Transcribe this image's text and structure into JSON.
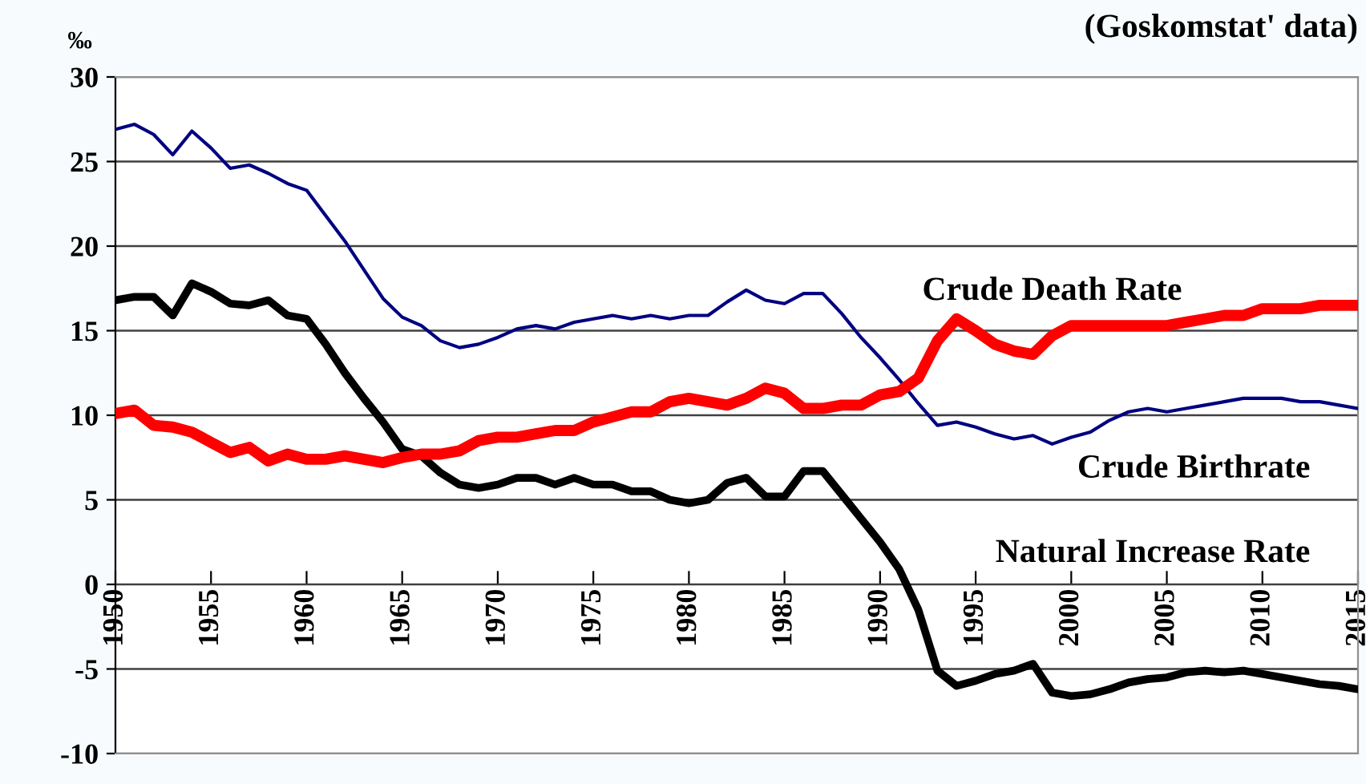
{
  "chart_data": {
    "type": "line",
    "title": "(Goskomstat' data)",
    "ylabel": "‰",
    "x": [
      1950,
      1951,
      1952,
      1953,
      1954,
      1955,
      1956,
      1957,
      1958,
      1959,
      1960,
      1961,
      1962,
      1963,
      1964,
      1965,
      1966,
      1967,
      1968,
      1969,
      1970,
      1971,
      1972,
      1973,
      1974,
      1975,
      1976,
      1977,
      1978,
      1979,
      1980,
      1981,
      1982,
      1983,
      1984,
      1985,
      1986,
      1987,
      1988,
      1989,
      1990,
      1991,
      1992,
      1993,
      1994,
      1995,
      1996,
      1997,
      1998,
      1999,
      2000,
      2001,
      2002,
      2003,
      2004,
      2005,
      2006,
      2007,
      2008,
      2009,
      2010,
      2011,
      2012,
      2013,
      2014,
      2015
    ],
    "series": [
      {
        "name": "Crude Death Rate",
        "color": "#ff0000",
        "values": [
          10.1,
          10.3,
          9.4,
          9.3,
          9.0,
          8.4,
          7.8,
          8.1,
          7.3,
          7.7,
          7.4,
          7.4,
          7.6,
          7.4,
          7.2,
          7.5,
          7.7,
          7.7,
          7.9,
          8.5,
          8.7,
          8.7,
          8.9,
          9.1,
          9.1,
          9.6,
          9.9,
          10.2,
          10.2,
          10.8,
          11.0,
          10.8,
          10.6,
          11.0,
          11.6,
          11.3,
          10.4,
          10.4,
          10.6,
          10.6,
          11.2,
          11.4,
          12.2,
          14.4,
          15.7,
          15.0,
          14.2,
          13.8,
          13.6,
          14.7,
          15.3,
          15.3,
          15.3,
          15.3,
          15.3,
          15.3,
          15.5,
          15.7,
          15.9,
          15.9,
          16.3,
          16.3,
          16.3,
          16.5,
          16.5,
          16.5
        ]
      },
      {
        "name": "Crude Birthrate",
        "color": "#000080",
        "values": [
          26.9,
          27.2,
          26.6,
          25.4,
          26.8,
          25.8,
          24.6,
          24.8,
          24.3,
          23.7,
          23.3,
          21.8,
          20.3,
          18.6,
          16.9,
          15.8,
          15.3,
          14.4,
          14.0,
          14.2,
          14.6,
          15.1,
          15.3,
          15.1,
          15.5,
          15.7,
          15.9,
          15.7,
          15.9,
          15.7,
          15.9,
          15.9,
          16.7,
          17.4,
          16.8,
          16.6,
          17.2,
          17.2,
          16.0,
          14.6,
          13.4,
          12.1,
          10.7,
          9.4,
          9.6,
          9.3,
          8.9,
          8.6,
          8.8,
          8.3,
          8.7,
          9.0,
          9.7,
          10.2,
          10.4,
          10.2,
          10.4,
          10.6,
          10.8,
          11.0,
          11.0,
          11.0,
          10.8,
          10.8,
          10.6,
          10.4
        ]
      },
      {
        "name": "Natural Increase Rate",
        "color": "#000000",
        "values": [
          16.8,
          17.0,
          17.0,
          15.9,
          17.8,
          17.3,
          16.6,
          16.5,
          16.8,
          15.9,
          15.7,
          14.2,
          12.5,
          11.0,
          9.6,
          8.0,
          7.6,
          6.6,
          5.9,
          5.7,
          5.9,
          6.3,
          6.3,
          5.9,
          6.3,
          5.9,
          5.9,
          5.5,
          5.5,
          5.0,
          4.8,
          5.0,
          6.0,
          6.3,
          5.2,
          5.2,
          6.7,
          6.7,
          5.3,
          3.9,
          2.5,
          0.9,
          -1.5,
          -5.1,
          -6.0,
          -5.7,
          -5.3,
          -5.1,
          -4.7,
          -6.4,
          -6.6,
          -6.5,
          -6.2,
          -5.8,
          -5.6,
          -5.5,
          -5.2,
          -5.1,
          -5.2,
          -5.1,
          -5.3,
          -5.5,
          -5.7,
          -5.9,
          -6.0,
          -6.2
        ]
      }
    ],
    "xlim": [
      1950,
      2015
    ],
    "xticks": [
      1950,
      1955,
      1960,
      1965,
      1970,
      1975,
      1980,
      1985,
      1990,
      1995,
      2000,
      2005,
      2010,
      2015
    ],
    "ylim": [
      -10,
      30
    ],
    "yticks": [
      -10,
      -5,
      0,
      5,
      10,
      15,
      20,
      25,
      30
    ],
    "grid": "y",
    "legend": false,
    "marker": "none",
    "line_style": "solid"
  }
}
